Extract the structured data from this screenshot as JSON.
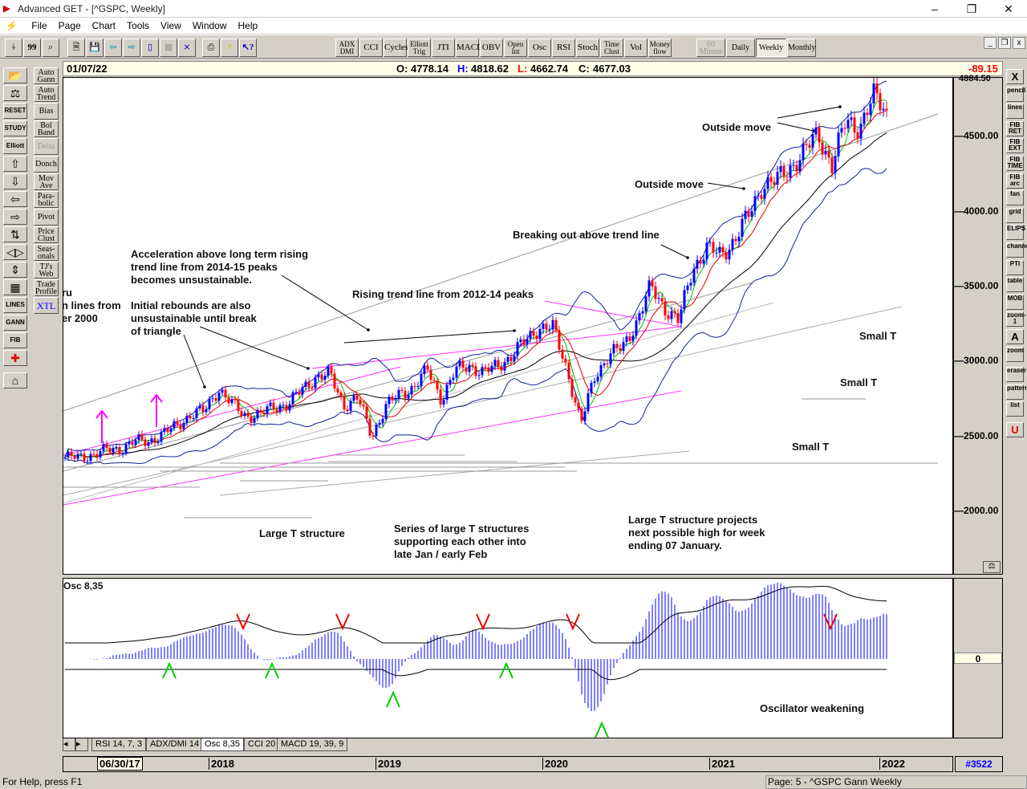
{
  "window": {
    "title": "Advanced GET - [^GSPC, Weekly]"
  },
  "menu": [
    "File",
    "Page",
    "Chart",
    "Tools",
    "View",
    "Window",
    "Help"
  ],
  "toolbar": {
    "indicators": [
      "ADX DMI",
      "CCI",
      "Cycles",
      "Elliott Trig",
      "JTI",
      "MACD",
      "OBV",
      "Open Int",
      "Osc",
      "RSI",
      "Stoch",
      "Time Clust",
      "Vol",
      "Money flow"
    ],
    "timeframes": [
      "60 Minute",
      "Daily",
      "Weekly",
      "Monthly"
    ],
    "active_timeframe": "Weekly"
  },
  "left_tools": [
    "open-icon",
    "scales-icon",
    "RESET",
    "STUDY",
    "Elliott",
    "arrow-up-icon",
    "arrow-down-icon",
    "arrow-left-icon",
    "arrow-right-icon",
    "split-icon",
    "mirror-icon",
    "squeeze-icon",
    "grid-icon",
    "LINES",
    "GANN",
    "FIB",
    "crosshair-icon",
    "eraser-house-icon"
  ],
  "studies": [
    "Auto Gann",
    "Auto Trend",
    "Bias",
    "Bol Band",
    "Delta",
    "Donch",
    "Mov Ave",
    "Para-bolic",
    "Pivot",
    "Price Clust",
    "Seas-onals",
    "TJ's Web",
    "Trade Profile",
    "XTL"
  ],
  "right_tools": [
    "X",
    "pencil",
    "lines",
    "FIB RET",
    "FIB EXT",
    "FIB TIME",
    "FIB arc",
    "fan",
    "grid",
    "ELIPS",
    "channel",
    "PTI",
    "table",
    "MOB",
    "zoom-1",
    "A",
    "zoom",
    "eraser",
    "pattern",
    "list",
    "U"
  ],
  "info": {
    "date": "01/07/22",
    "open_label": "O:",
    "open": "4778.14",
    "high_label": "H:",
    "high": "4818.62",
    "low_label": "L:",
    "low": "4662.74",
    "close_label": "C:",
    "close": "4677.03",
    "change": "-89.15"
  },
  "axis": {
    "top": "4884.50",
    "labels": [
      "4500.00",
      "4000.00",
      "3500.00",
      "3000.00",
      "2500.00",
      "2000.00"
    ]
  },
  "annotations": {
    "outside1": "Outside move",
    "outside2": "Outside move",
    "breakout": "Breaking out above trend line",
    "accel": "Acceleration above long term rising\ntrend line from 2014-15 peaks\nbecomes unsustainable.",
    "rising": "Rising trend line from 2012-14 peaks",
    "rebounds": "Initial rebounds are also\nunsustainable until break\nof triangle",
    "cut": "ru\nn lines from\ner 2000",
    "smallT1": "Small T",
    "smallT2": "Small T",
    "smallT3": "Small T",
    "largeT": "Large T structure",
    "series": "Series of large T structures\nsupporting each other into\nlate Jan / early Feb",
    "project": "Large T structure projects\nnext possible high for week\nending 07 January."
  },
  "osc": {
    "label": "Osc 8,35",
    "zero": "0",
    "note": "Oscillator weakening"
  },
  "tabs": [
    "RSI 14, 7, 3",
    "ADX/DMI 14",
    "Osc 8,35",
    "CCI 20",
    "MACD 19, 39, 9"
  ],
  "active_tab": "Osc 8,35",
  "dates": {
    "start": "06/30/17",
    "years": [
      "2018",
      "2019",
      "2020",
      "2021",
      "2022"
    ],
    "count": "#3522"
  },
  "status": {
    "help": "For Help, press F1",
    "page": "Page: 5 - ^GSPC Gann Weekly"
  },
  "colors": {
    "up": "#0000ff",
    "down": "#ff0000",
    "ma_fast": "#00c000",
    "ma_mid": "#e00000",
    "ma_slow": "#000000",
    "band": "#1020a0",
    "trend": "#ff30ff"
  },
  "chart_data": {
    "type": "candlestick",
    "title": "^GSPC Weekly",
    "ylim": [
      1700,
      4884.5
    ],
    "monthly_close_from_2017_02": [
      2364,
      2363,
      2384,
      2412,
      2423,
      2470,
      2472,
      2519,
      2575,
      2648,
      2674,
      2824,
      2714,
      2641,
      2648,
      2705,
      2718,
      2816,
      2902,
      2914,
      2712,
      2760,
      2507,
      2704,
      2784,
      2834,
      2946,
      2752,
      2942,
      2980,
      2926,
      2977,
      3038,
      3141,
      3231,
      3226,
      2954,
      2585,
      2912,
      3044,
      3100,
      3271,
      3500,
      3363,
      3270,
      3622,
      3756,
      3714,
      3811,
      3973,
      4181,
      4204,
      4298,
      4395,
      4523,
      4308,
      4605,
      4567,
      4766,
      4677
    ]
  }
}
